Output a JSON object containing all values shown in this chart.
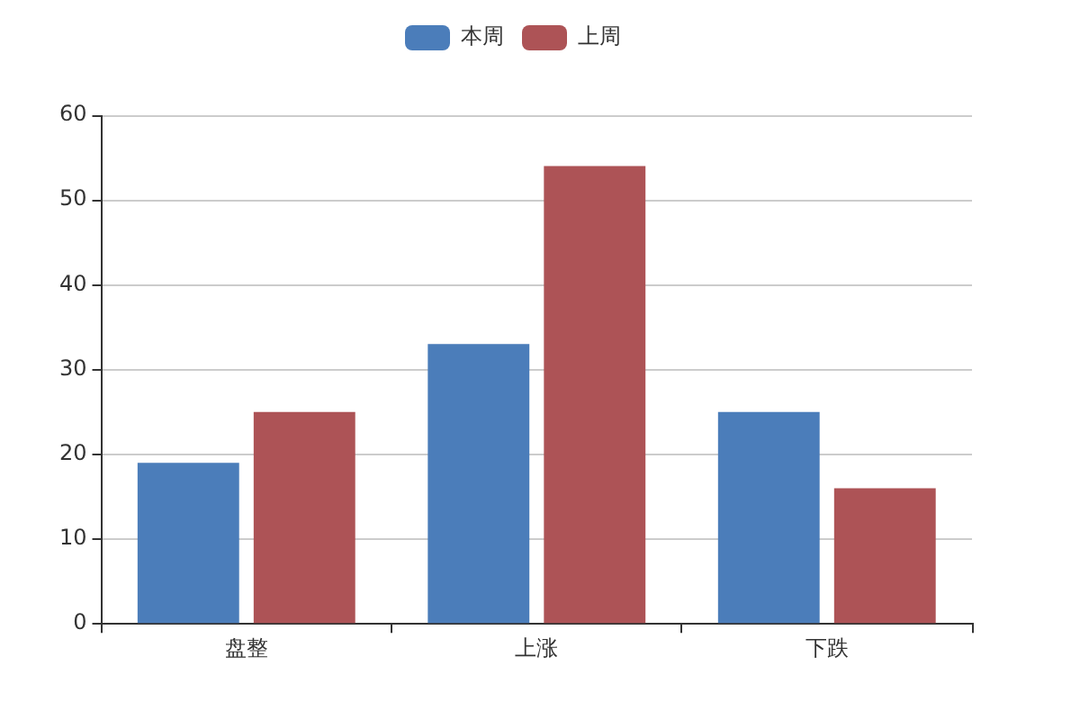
{
  "chart_data": {
    "type": "bar",
    "categories": [
      "盘整",
      "上涨",
      "下跌"
    ],
    "series": [
      {
        "name": "本周",
        "color": "#4b7dba",
        "values": [
          19,
          33,
          25
        ]
      },
      {
        "name": "上周",
        "color": "#ad5356",
        "values": [
          25,
          54,
          16
        ]
      }
    ],
    "ylim": [
      0,
      60
    ],
    "yticks": [
      0,
      10,
      20,
      30,
      40,
      50,
      60
    ],
    "grid": "y",
    "legend": "top"
  }
}
